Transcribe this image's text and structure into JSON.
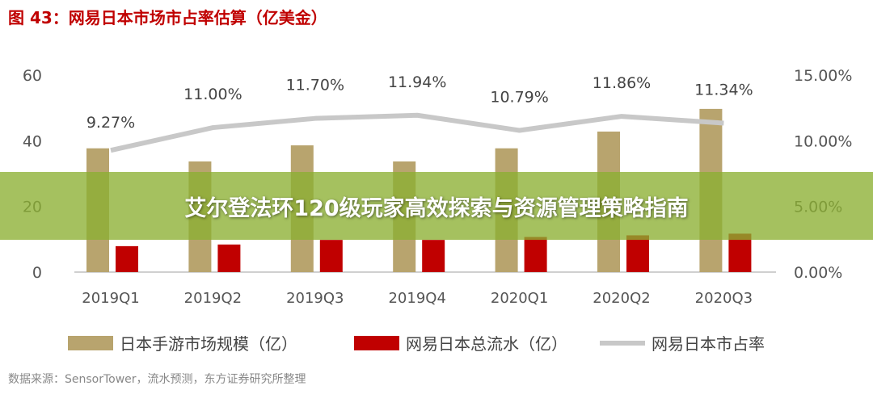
{
  "title": "图 43：网易日本市场市占率估算（亿美金）",
  "banner": "艾尔登法环120级玩家高效探索与资源管理策略指南",
  "source": "数据来源：SensorTower，流水预测，东方证券研究所整理",
  "chart_data": {
    "type": "bar+line",
    "categories": [
      "2019Q1",
      "2019Q2",
      "2019Q3",
      "2019Q4",
      "2020Q1",
      "2020Q2",
      "2020Q3"
    ],
    "series": [
      {
        "name": "日本手游市场规模（亿）",
        "type": "bar",
        "axis": "left",
        "color": "#b8a46e",
        "values": [
          37.7,
          33.7,
          38.6,
          33.7,
          37.7,
          42.8,
          49.7
        ]
      },
      {
        "name": "网易日本总流水（亿）",
        "type": "bar",
        "axis": "left",
        "color": "#c00000",
        "values": [
          7.9,
          8.4,
          9.8,
          9.8,
          10.7,
          11.2,
          11.7
        ]
      },
      {
        "name": "网易日本市占率",
        "type": "line",
        "axis": "right",
        "color": "#c8c8c8",
        "values": [
          9.27,
          11.0,
          11.7,
          11.94,
          10.79,
          11.86,
          11.34
        ],
        "labels": [
          "9.27%",
          "11.00%",
          "11.70%",
          "11.94%",
          "10.79%",
          "11.86%",
          "11.34%"
        ]
      }
    ],
    "yleft": {
      "ticks": [
        "0",
        "20",
        "40",
        "60"
      ],
      "range": [
        0,
        60
      ]
    },
    "yright": {
      "ticks": [
        "0.00%",
        "5.00%",
        "10.00%",
        "15.00%"
      ],
      "range": [
        0,
        15
      ]
    },
    "legend": "bottom",
    "grid": false
  }
}
